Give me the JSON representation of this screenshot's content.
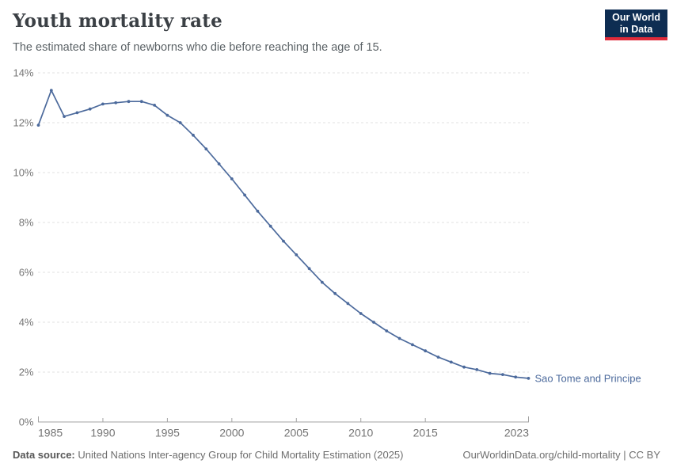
{
  "header": {
    "title": "Youth mortality rate",
    "subtitle": "The estimated share of newborns who die before reaching the age of 15.",
    "logo_line1": "Our World",
    "logo_line2": "in Data"
  },
  "chart_data": {
    "type": "line",
    "title": "Youth mortality rate",
    "xlabel": "",
    "ylabel": "",
    "xlim": [
      1985,
      2023
    ],
    "ylim": [
      0,
      14
    ],
    "grid": "horizontal-dashed",
    "legend_position": "end-of-line-label",
    "x_ticks": [
      1985,
      1990,
      1995,
      2000,
      2005,
      2010,
      2015,
      2023
    ],
    "y_ticks": [
      0,
      2,
      4,
      6,
      8,
      10,
      12,
      14
    ],
    "y_tick_suffix": "%",
    "series": [
      {
        "name": "Sao Tome and Principe",
        "color": "#4c6a9c",
        "x": [
          1985,
          1986,
          1987,
          1988,
          1989,
          1990,
          1991,
          1992,
          1993,
          1994,
          1995,
          1996,
          1997,
          1998,
          1999,
          2000,
          2001,
          2002,
          2003,
          2004,
          2005,
          2006,
          2007,
          2008,
          2009,
          2010,
          2011,
          2012,
          2013,
          2014,
          2015,
          2016,
          2017,
          2018,
          2019,
          2020,
          2021,
          2022,
          2023
        ],
        "values": [
          11.9,
          13.3,
          12.25,
          12.4,
          12.55,
          12.75,
          12.8,
          12.85,
          12.85,
          12.7,
          12.3,
          12.0,
          11.5,
          10.95,
          10.35,
          9.75,
          9.1,
          8.45,
          7.85,
          7.25,
          6.7,
          6.15,
          5.6,
          5.15,
          4.75,
          4.35,
          4.0,
          3.65,
          3.35,
          3.1,
          2.85,
          2.6,
          2.4,
          2.2,
          2.1,
          1.95,
          1.9,
          1.8,
          1.75
        ]
      }
    ]
  },
  "footer": {
    "source_label": "Data source:",
    "source_text": " United Nations Inter-agency Group for Child Mortality Estimation (2025)",
    "link_text": "OurWorldinData.org/child-mortality | CC BY"
  },
  "colors": {
    "line": "#4c6a9c",
    "logo_bg": "#0e2d52",
    "logo_accent": "#e02b3a",
    "grid": "#e0e0e0",
    "axis": "#a3a3a3",
    "tick_text": "#757575",
    "title_text": "#3b4045",
    "subtitle_text": "#5b6266",
    "footer_text": "#6e6e6e"
  }
}
